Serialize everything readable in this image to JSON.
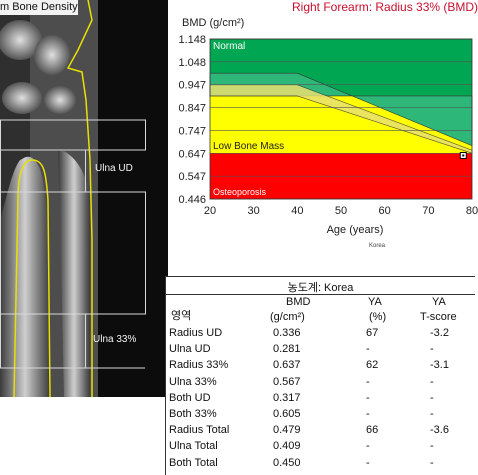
{
  "scan": {
    "title": "m Bone Density",
    "roi_labels": [
      "Ulna UD",
      "Ulna 33%"
    ]
  },
  "header": {
    "title": "Right Forearm: Radius 33% (BMD)"
  },
  "chart_data": {
    "type": "area",
    "ylabel": "BMD (g/cm²)",
    "xlabel": "Age (years)",
    "reference_note": "Korea",
    "x_ticks": [
      "20",
      "30",
      "40",
      "50",
      "60",
      "70",
      "80"
    ],
    "y_ticks": [
      "1.148",
      "1.048",
      "0.947",
      "0.847",
      "0.747",
      "0.647",
      "0.547",
      "0.446"
    ],
    "xlim": [
      20,
      80
    ],
    "ylim": [
      0.446,
      1.148
    ],
    "zones": [
      {
        "name": "Normal",
        "color": "#00a651"
      },
      {
        "name": "Low Bone Mass",
        "color": "#ffff00"
      },
      {
        "name": "Osteoporosis",
        "color": "#ff0000"
      }
    ],
    "zone_thresholds": {
      "normal_min": 0.898,
      "osteoporosis_max": 0.647
    },
    "reference_curve": {
      "x": [
        20,
        40,
        80
      ],
      "y": [
        0.998,
        0.998,
        0.68
      ]
    },
    "lower_curve": {
      "x": [
        20,
        40,
        80
      ],
      "y": [
        0.947,
        0.947,
        0.66
      ]
    },
    "patient_point": {
      "age": 78,
      "bmd": 0.637
    }
  },
  "table": {
    "title": "농도계: Korea",
    "headers": {
      "region": "영역",
      "bmd_top": "BMD",
      "bmd_bottom": "(g/cm²)",
      "ya_top": "YA",
      "ya_bottom": "(%)",
      "t_top": "YA",
      "t_bottom": "T-score"
    },
    "rows": [
      {
        "region": "Radius UD",
        "bmd": "0.336",
        "ya": "67",
        "t": "-3.2"
      },
      {
        "region": "Ulna UD",
        "bmd": "0.281",
        "ya": "-",
        "t": "-"
      },
      {
        "region": "Radius 33%",
        "bmd": "0.637",
        "ya": "62",
        "t": "-3.1"
      },
      {
        "region": "Ulna 33%",
        "bmd": "0.567",
        "ya": "-",
        "t": "-"
      },
      {
        "region": "Both UD",
        "bmd": "0.317",
        "ya": "-",
        "t": "-"
      },
      {
        "region": "Both 33%",
        "bmd": "0.605",
        "ya": "-",
        "t": "-"
      },
      {
        "region": "Radius Total",
        "bmd": "0.479",
        "ya": "66",
        "t": "-3.6"
      },
      {
        "region": "Ulna Total",
        "bmd": "0.409",
        "ya": "-",
        "t": "-"
      },
      {
        "region": "Both Total",
        "bmd": "0.450",
        "ya": "-",
        "t": "-"
      }
    ]
  }
}
